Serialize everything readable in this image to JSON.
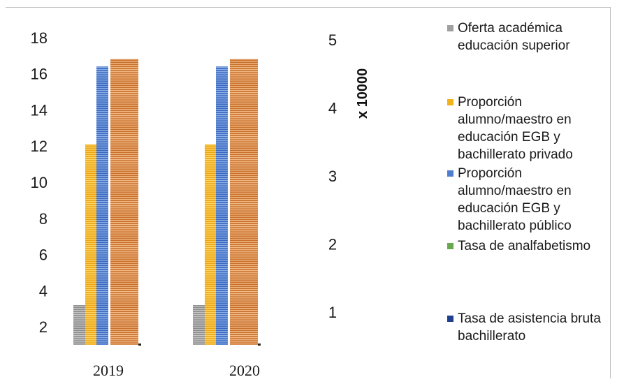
{
  "chart_data": {
    "type": "bar",
    "categories": [
      "2019",
      "2020"
    ],
    "y_left": {
      "ticks": [
        "2",
        "4",
        "6",
        "8",
        "10",
        "12",
        "14",
        "16",
        "18"
      ],
      "ylim": [
        1,
        19
      ]
    },
    "y_right": {
      "ticks": [
        "1",
        "2",
        "3",
        "4",
        "5"
      ],
      "unit_label": "x 10000",
      "ylim": [
        0.52,
        5.3
      ]
    },
    "series": [
      {
        "name": "Oferta académica educación superior",
        "axis": "left",
        "values": [
          3.2,
          3.2
        ],
        "color": "#a0a0a0"
      },
      {
        "name": "Proporción alumno/maestro en educación EGB y bachillerato privado",
        "axis": "left",
        "values": [
          12.1,
          12.1
        ],
        "color": "#f2b21c"
      },
      {
        "name": "Proporción alumno/maestro en educación EGB y bachillerato público",
        "axis": "left",
        "values": [
          16.4,
          16.4
        ],
        "color": "#4f7ed0"
      },
      {
        "name": "Tasa de analfabetismo",
        "axis": "left",
        "values": [
          null,
          null
        ],
        "color": "#6aa84f"
      },
      {
        "name": "Tasa de asistencia bruta bachillerato",
        "axis": "left",
        "values": [
          null,
          null
        ],
        "color": "#1f3f8f"
      },
      {
        "name": "",
        "axis": "right",
        "values": [
          4.72,
          4.72
        ],
        "color": "#d9803a"
      }
    ],
    "legend_position": "right",
    "grid": false
  }
}
